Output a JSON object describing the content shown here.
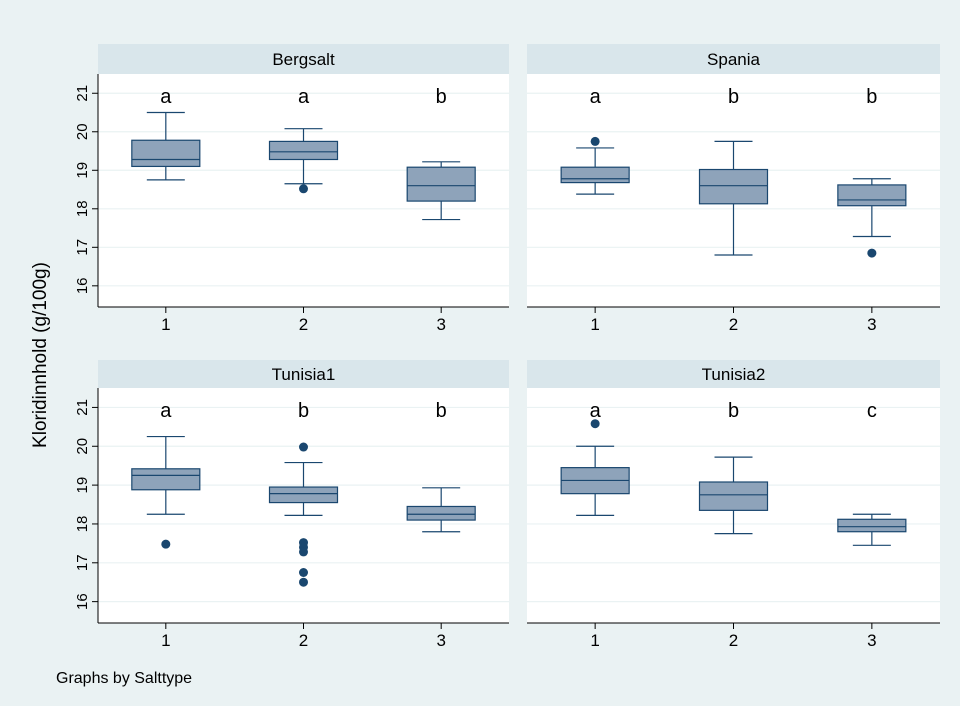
{
  "figure": {
    "ylabel": "Kloridinnhold (g/100g)",
    "note": "Graphs by Salttype"
  },
  "colors": {
    "outer_bg": "#eaf2f3",
    "strip_bg": "#d9e6eb",
    "box_fill": "#8ea3ba",
    "box_stroke": "#1a476f",
    "point": "#1a476f",
    "grid": "#eaf2f3",
    "axis": "#000000"
  },
  "chart_data": [
    {
      "type": "box",
      "title": "Bergsalt",
      "categories": [
        "1",
        "2",
        "3"
      ],
      "yticks": [
        16,
        17,
        18,
        19,
        20,
        21
      ],
      "ylim": [
        15.45,
        21.5
      ],
      "letters": [
        "a",
        "a",
        "b"
      ],
      "boxes": [
        {
          "whisker_low": 18.75,
          "q1": 19.1,
          "median": 19.28,
          "q3": 19.78,
          "whisker_high": 20.5,
          "outliers": []
        },
        {
          "whisker_low": 18.65,
          "q1": 19.28,
          "median": 19.48,
          "q3": 19.75,
          "whisker_high": 20.08,
          "outliers": [
            18.52
          ]
        },
        {
          "whisker_low": 17.72,
          "q1": 18.2,
          "median": 18.6,
          "q3": 19.08,
          "whisker_high": 19.22,
          "outliers": []
        }
      ]
    },
    {
      "type": "box",
      "title": "Spania",
      "categories": [
        "1",
        "2",
        "3"
      ],
      "yticks": [
        16,
        17,
        18,
        19,
        20,
        21
      ],
      "ylim": [
        15.45,
        21.5
      ],
      "letters": [
        "a",
        "b",
        "b"
      ],
      "boxes": [
        {
          "whisker_low": 18.38,
          "q1": 18.68,
          "median": 18.78,
          "q3": 19.08,
          "whisker_high": 19.58,
          "outliers": [
            19.75
          ]
        },
        {
          "whisker_low": 16.8,
          "q1": 18.13,
          "median": 18.6,
          "q3": 19.02,
          "whisker_high": 19.75,
          "outliers": []
        },
        {
          "whisker_low": 17.28,
          "q1": 18.08,
          "median": 18.23,
          "q3": 18.62,
          "whisker_high": 18.78,
          "outliers": [
            16.85
          ]
        }
      ]
    },
    {
      "type": "box",
      "title": "Tunisia1",
      "categories": [
        "1",
        "2",
        "3"
      ],
      "yticks": [
        16,
        17,
        18,
        19,
        20,
        21
      ],
      "ylim": [
        15.45,
        21.5
      ],
      "letters": [
        "a",
        "b",
        "b"
      ],
      "boxes": [
        {
          "whisker_low": 18.25,
          "q1": 18.88,
          "median": 19.25,
          "q3": 19.42,
          "whisker_high": 20.25,
          "outliers": [
            17.48
          ]
        },
        {
          "whisker_low": 18.22,
          "q1": 18.55,
          "median": 18.78,
          "q3": 18.95,
          "whisker_high": 19.58,
          "outliers": [
            19.98,
            17.52,
            17.4,
            17.28,
            16.75,
            16.5
          ]
        },
        {
          "whisker_low": 17.8,
          "q1": 18.1,
          "median": 18.25,
          "q3": 18.45,
          "whisker_high": 18.93,
          "outliers": []
        }
      ]
    },
    {
      "type": "box",
      "title": "Tunisia2",
      "categories": [
        "1",
        "2",
        "3"
      ],
      "yticks": [
        16,
        17,
        18,
        19,
        20,
        21
      ],
      "ylim": [
        15.45,
        21.5
      ],
      "letters": [
        "a",
        "b",
        "c"
      ],
      "boxes": [
        {
          "whisker_low": 18.22,
          "q1": 18.78,
          "median": 19.12,
          "q3": 19.45,
          "whisker_high": 20.0,
          "outliers": [
            20.58
          ]
        },
        {
          "whisker_low": 17.75,
          "q1": 18.35,
          "median": 18.75,
          "q3": 19.08,
          "whisker_high": 19.72,
          "outliers": []
        },
        {
          "whisker_low": 17.45,
          "q1": 17.8,
          "median": 17.93,
          "q3": 18.12,
          "whisker_high": 18.25,
          "outliers": []
        }
      ]
    }
  ]
}
